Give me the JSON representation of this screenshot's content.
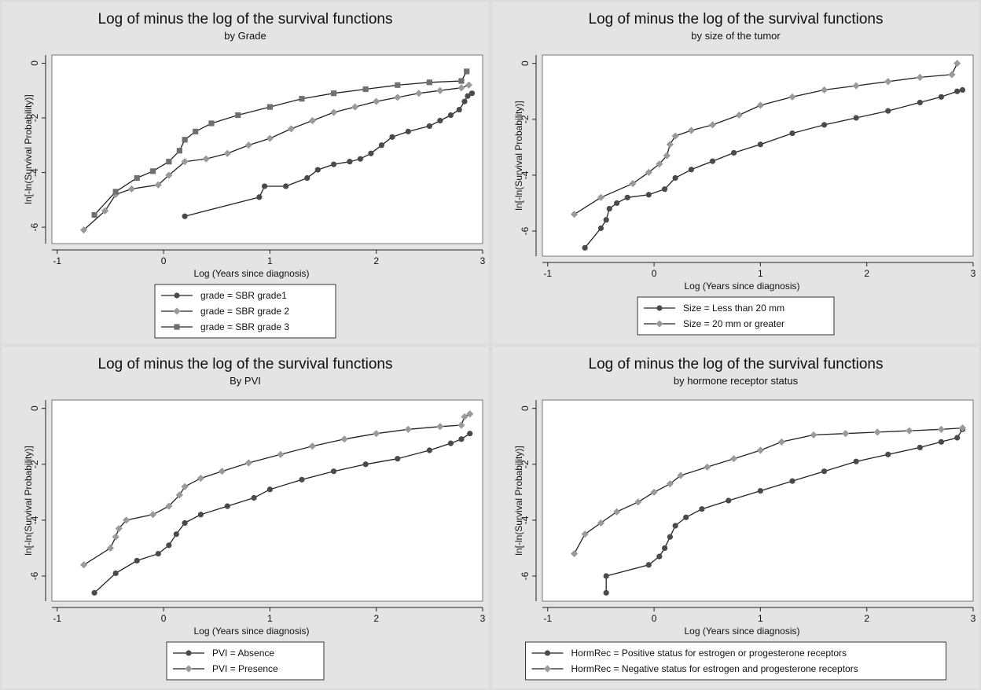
{
  "chart_data": [
    {
      "type": "line",
      "title": "Log of minus the log of the survival functions",
      "subtitle": "by Grade",
      "xlabel": "Log (Years since diagnosis)",
      "ylabel": "ln[-ln(Survival Probability)]",
      "xlim": [
        -1.05,
        3.0
      ],
      "ylim": [
        -6.6,
        0.3
      ],
      "xticks": [
        -1,
        0,
        1,
        2,
        3
      ],
      "yticks": [
        -6,
        -4,
        -2,
        0
      ],
      "grid": false,
      "legend": "bottom-center",
      "series": [
        {
          "name": "grade = SBR grade1",
          "color": "#4a4a4a",
          "marker": "circle",
          "points": [
            [
              0.2,
              -5.6
            ],
            [
              0.9,
              -4.9
            ],
            [
              0.95,
              -4.5
            ],
            [
              1.15,
              -4.5
            ],
            [
              1.35,
              -4.2
            ],
            [
              1.45,
              -3.9
            ],
            [
              1.6,
              -3.7
            ],
            [
              1.75,
              -3.6
            ],
            [
              1.85,
              -3.5
            ],
            [
              1.95,
              -3.3
            ],
            [
              2.05,
              -3.0
            ],
            [
              2.15,
              -2.7
            ],
            [
              2.3,
              -2.5
            ],
            [
              2.5,
              -2.3
            ],
            [
              2.6,
              -2.1
            ],
            [
              2.7,
              -1.9
            ],
            [
              2.78,
              -1.7
            ],
            [
              2.83,
              -1.4
            ],
            [
              2.86,
              -1.2
            ],
            [
              2.9,
              -1.1
            ]
          ]
        },
        {
          "name": "grade = SBR grade 2",
          "color": "#9a9a9a",
          "marker": "diamond",
          "points": [
            [
              -0.75,
              -6.1
            ],
            [
              -0.55,
              -5.4
            ],
            [
              -0.45,
              -4.8
            ],
            [
              -0.3,
              -4.6
            ],
            [
              -0.05,
              -4.45
            ],
            [
              0.05,
              -4.1
            ],
            [
              0.2,
              -3.6
            ],
            [
              0.4,
              -3.5
            ],
            [
              0.6,
              -3.3
            ],
            [
              0.8,
              -3.0
            ],
            [
              1.0,
              -2.75
            ],
            [
              1.2,
              -2.4
            ],
            [
              1.4,
              -2.1
            ],
            [
              1.6,
              -1.8
            ],
            [
              1.8,
              -1.6
            ],
            [
              2.0,
              -1.4
            ],
            [
              2.2,
              -1.25
            ],
            [
              2.4,
              -1.1
            ],
            [
              2.6,
              -1.0
            ],
            [
              2.8,
              -0.9
            ],
            [
              2.87,
              -0.8
            ]
          ]
        },
        {
          "name": "grade = SBR grade 3",
          "color": "#707070",
          "marker": "square",
          "points": [
            [
              -0.65,
              -5.55
            ],
            [
              -0.45,
              -4.7
            ],
            [
              -0.25,
              -4.2
            ],
            [
              -0.1,
              -3.95
            ],
            [
              0.05,
              -3.6
            ],
            [
              0.15,
              -3.2
            ],
            [
              0.2,
              -2.8
            ],
            [
              0.3,
              -2.5
            ],
            [
              0.45,
              -2.2
            ],
            [
              0.7,
              -1.9
            ],
            [
              1.0,
              -1.6
            ],
            [
              1.3,
              -1.3
            ],
            [
              1.6,
              -1.1
            ],
            [
              1.9,
              -0.95
            ],
            [
              2.2,
              -0.8
            ],
            [
              2.5,
              -0.7
            ],
            [
              2.8,
              -0.65
            ],
            [
              2.85,
              -0.3
            ]
          ]
        }
      ]
    },
    {
      "type": "line",
      "title": "Log of minus the log of the survival functions",
      "subtitle": "by size of the tumor",
      "xlabel": "Log (Years since diagnosis)",
      "ylabel": "ln[-ln(Survival Probability)]",
      "xlim": [
        -1.05,
        3.0
      ],
      "ylim": [
        -6.9,
        0.3
      ],
      "xticks": [
        -1,
        0,
        1,
        2,
        3
      ],
      "yticks": [
        -6,
        -4,
        -2,
        0
      ],
      "grid": false,
      "legend": "bottom-center",
      "series": [
        {
          "name": "Size = Less than 20 mm",
          "color": "#4a4a4a",
          "marker": "circle",
          "points": [
            [
              -0.65,
              -6.6
            ],
            [
              -0.5,
              -5.9
            ],
            [
              -0.45,
              -5.6
            ],
            [
              -0.42,
              -5.2
            ],
            [
              -0.35,
              -5.0
            ],
            [
              -0.25,
              -4.8
            ],
            [
              -0.05,
              -4.7
            ],
            [
              0.1,
              -4.5
            ],
            [
              0.2,
              -4.1
            ],
            [
              0.35,
              -3.8
            ],
            [
              0.55,
              -3.5
            ],
            [
              0.75,
              -3.2
            ],
            [
              1.0,
              -2.9
            ],
            [
              1.3,
              -2.5
            ],
            [
              1.6,
              -2.2
            ],
            [
              1.9,
              -1.95
            ],
            [
              2.2,
              -1.7
            ],
            [
              2.5,
              -1.4
            ],
            [
              2.7,
              -1.2
            ],
            [
              2.85,
              -1.0
            ],
            [
              2.9,
              -0.95
            ]
          ]
        },
        {
          "name": "Size = 20 mm or greater",
          "color": "#9a9a9a",
          "marker": "diamond",
          "points": [
            [
              -0.75,
              -5.4
            ],
            [
              -0.5,
              -4.8
            ],
            [
              -0.2,
              -4.3
            ],
            [
              -0.05,
              -3.9
            ],
            [
              0.05,
              -3.6
            ],
            [
              0.12,
              -3.3
            ],
            [
              0.15,
              -2.9
            ],
            [
              0.2,
              -2.6
            ],
            [
              0.35,
              -2.4
            ],
            [
              0.55,
              -2.2
            ],
            [
              0.8,
              -1.85
            ],
            [
              1.0,
              -1.5
            ],
            [
              1.3,
              -1.2
            ],
            [
              1.6,
              -0.95
            ],
            [
              1.9,
              -0.8
            ],
            [
              2.2,
              -0.65
            ],
            [
              2.5,
              -0.5
            ],
            [
              2.8,
              -0.4
            ],
            [
              2.85,
              0.0
            ]
          ]
        }
      ]
    },
    {
      "type": "line",
      "title": "Log of minus the log of the survival functions",
      "subtitle": "By PVI",
      "xlabel": "Log (Years since diagnosis)",
      "ylabel": "ln[-ln(Survival Probability)]",
      "xlim": [
        -1.05,
        3.0
      ],
      "ylim": [
        -6.9,
        0.3
      ],
      "xticks": [
        -1,
        0,
        1,
        2,
        3
      ],
      "yticks": [
        -6,
        -4,
        -2,
        0
      ],
      "grid": false,
      "legend": "bottom-center",
      "series": [
        {
          "name": "PVI = Absence",
          "color": "#4a4a4a",
          "marker": "circle",
          "points": [
            [
              -0.65,
              -6.6
            ],
            [
              -0.45,
              -5.9
            ],
            [
              -0.25,
              -5.45
            ],
            [
              -0.05,
              -5.2
            ],
            [
              0.05,
              -4.9
            ],
            [
              0.12,
              -4.5
            ],
            [
              0.2,
              -4.1
            ],
            [
              0.35,
              -3.8
            ],
            [
              0.6,
              -3.5
            ],
            [
              0.85,
              -3.2
            ],
            [
              1.0,
              -2.9
            ],
            [
              1.3,
              -2.55
            ],
            [
              1.6,
              -2.25
            ],
            [
              1.9,
              -2.0
            ],
            [
              2.2,
              -1.8
            ],
            [
              2.5,
              -1.5
            ],
            [
              2.7,
              -1.25
            ],
            [
              2.8,
              -1.1
            ],
            [
              2.88,
              -0.9
            ]
          ]
        },
        {
          "name": "PVI = Presence",
          "color": "#9a9a9a",
          "marker": "diamond",
          "points": [
            [
              -0.75,
              -5.6
            ],
            [
              -0.5,
              -5.0
            ],
            [
              -0.45,
              -4.6
            ],
            [
              -0.42,
              -4.3
            ],
            [
              -0.35,
              -4.0
            ],
            [
              -0.1,
              -3.8
            ],
            [
              0.05,
              -3.5
            ],
            [
              0.15,
              -3.1
            ],
            [
              0.2,
              -2.8
            ],
            [
              0.35,
              -2.5
            ],
            [
              0.55,
              -2.25
            ],
            [
              0.8,
              -1.95
            ],
            [
              1.1,
              -1.65
            ],
            [
              1.4,
              -1.35
            ],
            [
              1.7,
              -1.1
            ],
            [
              2.0,
              -0.9
            ],
            [
              2.3,
              -0.75
            ],
            [
              2.6,
              -0.65
            ],
            [
              2.8,
              -0.6
            ],
            [
              2.83,
              -0.3
            ],
            [
              2.88,
              -0.2
            ]
          ]
        }
      ]
    },
    {
      "type": "line",
      "title": "Log of minus the log of the survival functions",
      "subtitle": "by hormone receptor status",
      "xlabel": "Log (Years since diagnosis)",
      "ylabel": "ln[-ln(Survival Probability)]",
      "xlim": [
        -1.05,
        3.0
      ],
      "ylim": [
        -6.9,
        0.3
      ],
      "xticks": [
        -1,
        0,
        1,
        2,
        3
      ],
      "yticks": [
        -6,
        -4,
        -2,
        0
      ],
      "grid": false,
      "legend": "bottom-center",
      "series": [
        {
          "name": "HormRec = Positive status for estrogen or progesterone receptors",
          "color": "#4a4a4a",
          "marker": "circle",
          "points": [
            [
              -0.45,
              -6.6
            ],
            [
              -0.45,
              -6.0
            ],
            [
              -0.05,
              -5.6
            ],
            [
              0.05,
              -5.3
            ],
            [
              0.1,
              -5.0
            ],
            [
              0.15,
              -4.6
            ],
            [
              0.2,
              -4.2
            ],
            [
              0.3,
              -3.9
            ],
            [
              0.45,
              -3.6
            ],
            [
              0.7,
              -3.3
            ],
            [
              1.0,
              -2.95
            ],
            [
              1.3,
              -2.6
            ],
            [
              1.6,
              -2.25
            ],
            [
              1.9,
              -1.9
            ],
            [
              2.2,
              -1.65
            ],
            [
              2.5,
              -1.4
            ],
            [
              2.7,
              -1.2
            ],
            [
              2.85,
              -1.05
            ],
            [
              2.9,
              -0.75
            ]
          ]
        },
        {
          "name": "HormRec = Negative status for estrogen and progesterone receptors",
          "color": "#9a9a9a",
          "marker": "diamond",
          "points": [
            [
              -0.75,
              -5.2
            ],
            [
              -0.65,
              -4.5
            ],
            [
              -0.5,
              -4.1
            ],
            [
              -0.35,
              -3.7
            ],
            [
              -0.15,
              -3.35
            ],
            [
              0.0,
              -3.0
            ],
            [
              0.15,
              -2.7
            ],
            [
              0.25,
              -2.4
            ],
            [
              0.5,
              -2.1
            ],
            [
              0.75,
              -1.8
            ],
            [
              1.0,
              -1.5
            ],
            [
              1.2,
              -1.2
            ],
            [
              1.5,
              -0.95
            ],
            [
              1.8,
              -0.9
            ],
            [
              2.1,
              -0.85
            ],
            [
              2.4,
              -0.8
            ],
            [
              2.7,
              -0.75
            ],
            [
              2.9,
              -0.7
            ]
          ]
        }
      ]
    }
  ]
}
